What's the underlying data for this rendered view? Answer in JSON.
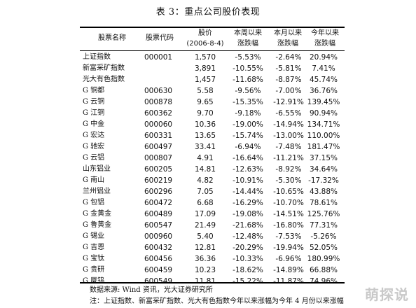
{
  "title": "表 3：重点公司股价表现",
  "headers": {
    "name": [
      "股票名称"
    ],
    "code": [
      "股票代码"
    ],
    "price": [
      "股价",
      "(2006-8-4)"
    ],
    "week": [
      "本周以来",
      "涨跌幅"
    ],
    "month": [
      "本月以来",
      "涨跌幅"
    ],
    "year": [
      "今年以来",
      "涨跌幅"
    ]
  },
  "rows": [
    {
      "name": "上证指数",
      "code": "000001",
      "price": "1,570",
      "week": "-5.53%",
      "month": "-2.64%",
      "year": "20.94%"
    },
    {
      "name": "新富采矿指数",
      "code": "",
      "price": "3,891",
      "week": "-10.55%",
      "month": "-5.81%",
      "year": "7.41%"
    },
    {
      "name": "光大有色指数",
      "code": "",
      "price": "1,457",
      "week": "-11.68%",
      "month": "-8.87%",
      "year": "45.74%"
    },
    {
      "name": "G 铜都",
      "code": "000630",
      "price": "5.58",
      "week": "-9.56%",
      "month": "-7.00%",
      "year": "36.76%"
    },
    {
      "name": "G 云铜",
      "code": "000878",
      "price": "9.65",
      "week": "-15.35%",
      "month": "-12.91%",
      "year": "139.45%"
    },
    {
      "name": "G 江铜",
      "code": "600362",
      "price": "9.70",
      "week": "-9.18%",
      "month": "-6.55%",
      "year": "90.94%"
    },
    {
      "name": "G 中金",
      "code": "000060",
      "price": "10.36",
      "week": "-19.00%",
      "month": "-14.94%",
      "year": "134.71%"
    },
    {
      "name": "G 宏达",
      "code": "600331",
      "price": "13.65",
      "week": "-15.74%",
      "month": "-13.00%",
      "year": "110.00%"
    },
    {
      "name": "G 驰宏",
      "code": "600497",
      "price": "33.41",
      "week": "-6.94%",
      "month": "-7.48%",
      "year": "181.47%"
    },
    {
      "name": "G 云铝",
      "code": "000807",
      "price": "4.91",
      "week": "-16.64%",
      "month": "-11.21%",
      "year": "37.15%"
    },
    {
      "name": "山东铝业",
      "code": "600205",
      "price": "14.81",
      "week": "-12.63%",
      "month": "-8.92%",
      "year": "34.64%"
    },
    {
      "name": "G 南山",
      "code": "600219",
      "price": "4.82",
      "week": "-10.91%",
      "month": "-5.30%",
      "year": "-17.32%"
    },
    {
      "name": "兰州铝业",
      "code": "600296",
      "price": "7.05",
      "week": "-14.44%",
      "month": "-10.65%",
      "year": "43.88%"
    },
    {
      "name": "G 包铝",
      "code": "600472",
      "price": "6.68",
      "week": "-16.29%",
      "month": "-10.70%",
      "year": "78.61%"
    },
    {
      "name": "G 金黄金",
      "code": "600489",
      "price": "17.09",
      "week": "-19.08%",
      "month": "-14.51%",
      "year": "125.76%"
    },
    {
      "name": "G 鲁黄金",
      "code": "600547",
      "price": "21.49",
      "week": "-21.68%",
      "month": "-16.80%",
      "year": "77.31%"
    },
    {
      "name": "G 锡业",
      "code": "000960",
      "price": "5.40",
      "week": "-12.48%",
      "month": "-7.53%",
      "year": "-5.26%"
    },
    {
      "name": "G 吉恩",
      "code": "600432",
      "price": "12.81",
      "week": "-20.29%",
      "month": "-19.94%",
      "year": "52.05%"
    },
    {
      "name": "G 宝钛",
      "code": "600456",
      "price": "36.36",
      "week": "-10.33%",
      "month": "-6.96%",
      "year": "180.99%"
    },
    {
      "name": "G 贵研",
      "code": "600459",
      "price": "10.23",
      "week": "-18.62%",
      "month": "-14.89%",
      "year": "66.88%"
    },
    {
      "name": "G 厦钨",
      "code": "600549",
      "price": "11.81",
      "week": "-15.22%",
      "month": "-11.87%",
      "year": "74.96%"
    }
  ],
  "source": "数据来源: Wind 资讯，光大证券研究所",
  "note": "注：上证指数、新富采矿指数、光大有色指数今年以来涨幅为今年 4 月份以来涨幅",
  "watermark": "萌探说"
}
